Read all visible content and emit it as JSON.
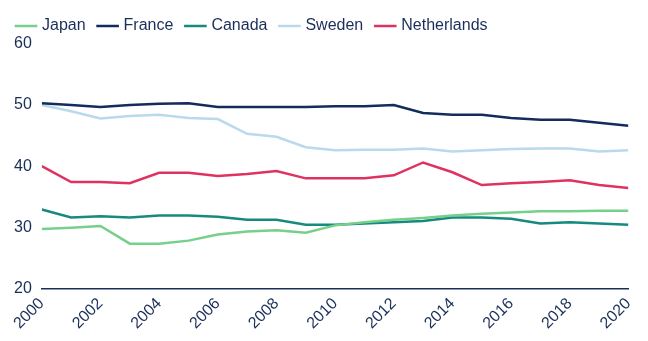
{
  "chart_data": {
    "type": "line",
    "x": [
      2000,
      2001,
      2002,
      2003,
      2004,
      2005,
      2006,
      2007,
      2008,
      2009,
      2010,
      2011,
      2012,
      2013,
      2014,
      2015,
      2016,
      2017,
      2018,
      2019,
      2020
    ],
    "xlim": [
      2000,
      2020
    ],
    "xticks": [
      2000,
      2002,
      2004,
      2006,
      2008,
      2010,
      2012,
      2014,
      2016,
      2018,
      2020
    ],
    "ylim": [
      20,
      60
    ],
    "yticks": [
      20,
      30,
      40,
      50,
      60
    ],
    "grid": false,
    "legend": "top",
    "series": [
      {
        "name": "Japan",
        "color": "#76cf8a",
        "values": [
          29.7,
          29.9,
          30.2,
          27.3,
          27.3,
          27.8,
          28.8,
          29.3,
          29.5,
          29.1,
          30.3,
          30.8,
          31.2,
          31.5,
          31.9,
          32.2,
          32.4,
          32.6,
          32.6,
          32.7,
          32.7
        ]
      },
      {
        "name": "France",
        "color": "#142b5e",
        "values": [
          50.3,
          50.0,
          49.7,
          50.0,
          50.2,
          50.3,
          49.7,
          49.7,
          49.7,
          49.7,
          49.8,
          49.8,
          50.0,
          48.7,
          48.4,
          48.4,
          47.9,
          47.6,
          47.6,
          47.1,
          46.6
        ]
      },
      {
        "name": "Canada",
        "color": "#168a7e",
        "values": [
          32.9,
          31.6,
          31.8,
          31.6,
          31.9,
          31.9,
          31.7,
          31.2,
          31.2,
          30.4,
          30.4,
          30.6,
          30.8,
          31.0,
          31.6,
          31.6,
          31.4,
          30.6,
          30.8,
          30.6,
          30.4
        ]
      },
      {
        "name": "Sweden",
        "color": "#b9d9ec",
        "values": [
          50.0,
          49.0,
          47.8,
          48.2,
          48.4,
          47.9,
          47.7,
          45.3,
          44.8,
          43.1,
          42.6,
          42.7,
          42.7,
          42.9,
          42.4,
          42.6,
          42.8,
          42.9,
          42.9,
          42.4,
          42.6
        ]
      },
      {
        "name": "Netherlands",
        "color": "#e0325f",
        "values": [
          40.0,
          37.4,
          37.4,
          37.2,
          38.9,
          38.9,
          38.4,
          38.7,
          39.2,
          38.0,
          38.0,
          38.0,
          38.5,
          40.6,
          39.0,
          36.9,
          37.2,
          37.4,
          37.7,
          36.9,
          36.4
        ]
      }
    ]
  }
}
